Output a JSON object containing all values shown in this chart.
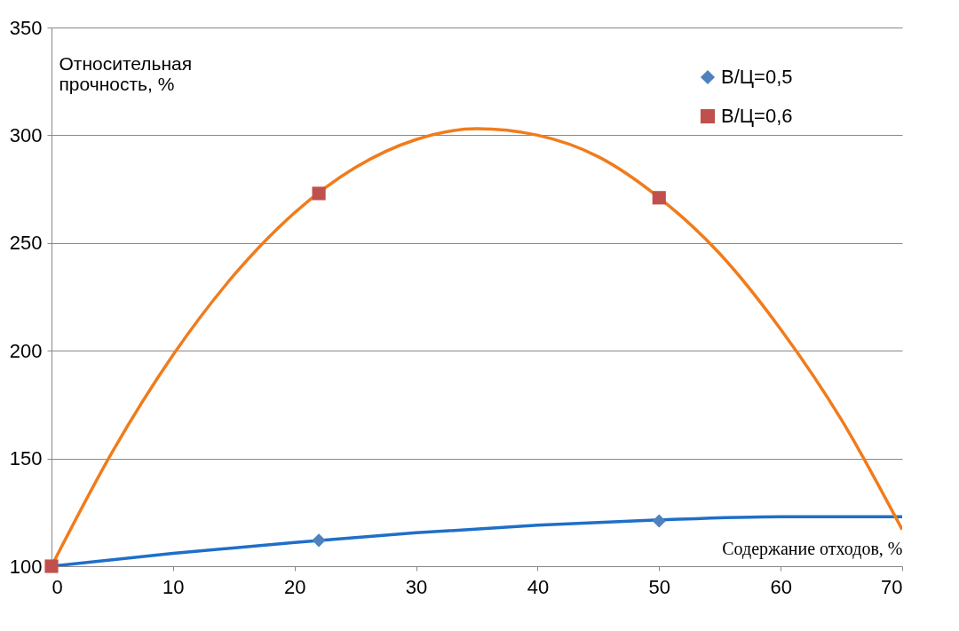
{
  "chart_data": {
    "type": "scatter",
    "xlabel": "Содержание отходов, %",
    "ylabel": "Относительная прочность, %",
    "xlim": [
      0,
      70
    ],
    "xticks": [
      0,
      10,
      20,
      30,
      40,
      50,
      60,
      70
    ],
    "ylim": [
      100,
      350
    ],
    "yticks": [
      100,
      150,
      200,
      250,
      300,
      350
    ],
    "grid": "y",
    "legend": "top right",
    "series": [
      {
        "name": "В/Ц=0,5",
        "color": "#4f81bd",
        "marker": "diamond",
        "x": [
          22,
          50
        ],
        "values": [
          112,
          121
        ]
      },
      {
        "name": "В/Ц=0,6",
        "color": "#c0504d",
        "marker": "square",
        "x": [
          0,
          22,
          50
        ],
        "values": [
          100,
          273,
          271
        ]
      },
      {
        "color": "#1f6fc8",
        "type": "line",
        "x": [
          0,
          10,
          20,
          30,
          40,
          50,
          60,
          70
        ],
        "values": [
          100,
          106,
          111,
          115.5,
          119,
          121.5,
          123,
          123
        ]
      },
      {
        "color": "#f07c1c",
        "type": "line",
        "x": [
          0,
          5,
          10,
          15,
          20,
          25,
          30,
          35,
          40,
          45,
          50,
          55,
          60,
          65,
          70
        ],
        "values": [
          100,
          153,
          198,
          235,
          264,
          285,
          298,
          303,
          300,
          290,
          271,
          245,
          210,
          168,
          117
        ]
      }
    ]
  }
}
